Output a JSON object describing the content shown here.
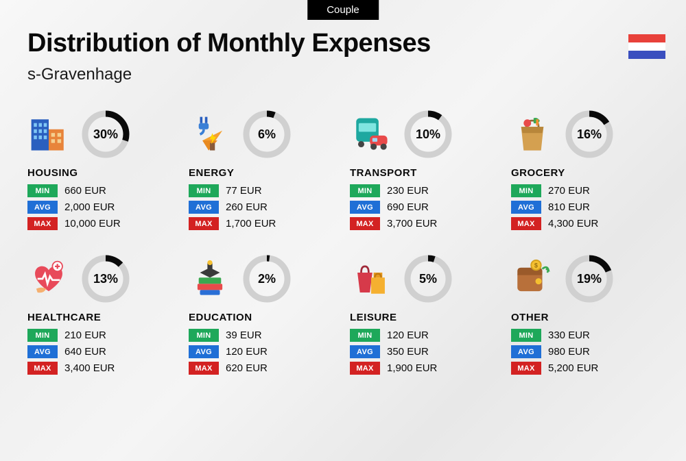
{
  "badge": "Couple",
  "title": "Distribution of Monthly Expenses",
  "subtitle": "s-Gravenhage",
  "flag_colors": [
    "#e8413a",
    "#ffffff",
    "#3a4fbf"
  ],
  "donut": {
    "track_color": "#d0d0d0",
    "fill_color": "#0a0a0a",
    "stroke_width": 9,
    "radius": 30
  },
  "stat_labels": {
    "min": "MIN",
    "avg": "AVG",
    "max": "MAX"
  },
  "stat_colors": {
    "min": "#1ea85a",
    "avg": "#1f6fd6",
    "max": "#d32222"
  },
  "categories": [
    {
      "name": "HOUSING",
      "pct": 30,
      "min": "660 EUR",
      "avg": "2,000 EUR",
      "max": "10,000 EUR",
      "icon": "housing"
    },
    {
      "name": "ENERGY",
      "pct": 6,
      "min": "77 EUR",
      "avg": "260 EUR",
      "max": "1,700 EUR",
      "icon": "energy"
    },
    {
      "name": "TRANSPORT",
      "pct": 10,
      "min": "230 EUR",
      "avg": "690 EUR",
      "max": "3,700 EUR",
      "icon": "transport"
    },
    {
      "name": "GROCERY",
      "pct": 16,
      "min": "270 EUR",
      "avg": "810 EUR",
      "max": "4,300 EUR",
      "icon": "grocery"
    },
    {
      "name": "HEALTHCARE",
      "pct": 13,
      "min": "210 EUR",
      "avg": "640 EUR",
      "max": "3,400 EUR",
      "icon": "healthcare"
    },
    {
      "name": "EDUCATION",
      "pct": 2,
      "min": "39 EUR",
      "avg": "120 EUR",
      "max": "620 EUR",
      "icon": "education"
    },
    {
      "name": "LEISURE",
      "pct": 5,
      "min": "120 EUR",
      "avg": "350 EUR",
      "max": "1,900 EUR",
      "icon": "leisure"
    },
    {
      "name": "OTHER",
      "pct": 19,
      "min": "330 EUR",
      "avg": "980 EUR",
      "max": "5,200 EUR",
      "icon": "other"
    }
  ]
}
